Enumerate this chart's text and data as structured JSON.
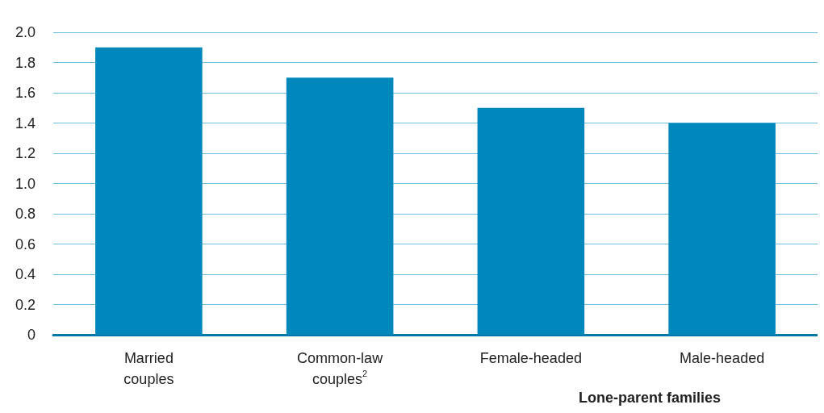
{
  "chart_data": {
    "type": "bar",
    "categories": [
      "Married couples",
      "Common-law couples$^{2}$",
      "Female-headed",
      "Male-headed"
    ],
    "values": [
      1.9,
      1.7,
      1.5,
      1.4
    ],
    "color": "#0088bd",
    "ylim": [
      0,
      2
    ],
    "yticks": [
      0,
      0.2,
      0.4,
      0.6,
      0.8,
      {
        "value": 1,
        "label": "1.0"
      },
      1.2,
      1.4,
      1.6,
      1.8,
      {
        "value": 2,
        "label": "2.0"
      }
    ],
    "grid": "y",
    "annotations": [
      "Lone-parent families"
    ]
  }
}
